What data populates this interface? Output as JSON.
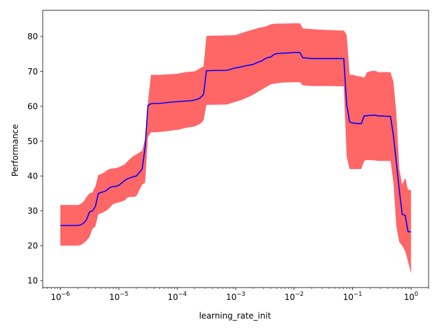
{
  "chart_data": {
    "type": "line",
    "title": "",
    "xlabel": "learning_rate_init",
    "ylabel": "Performance",
    "xscale": "log",
    "xlim": [
      5e-07,
      2
    ],
    "ylim": [
      8,
      87.5
    ],
    "grid": false,
    "x_ticks": [
      {
        "base": "10",
        "exp": "−6",
        "value": 1e-06
      },
      {
        "base": "10",
        "exp": "−5",
        "value": 1e-05
      },
      {
        "base": "10",
        "exp": "−4",
        "value": 0.0001
      },
      {
        "base": "10",
        "exp": "−3",
        "value": 0.001
      },
      {
        "base": "10",
        "exp": "−2",
        "value": 0.01
      },
      {
        "base": "10",
        "exp": "−1",
        "value": 0.1
      },
      {
        "base": "10",
        "exp": "0",
        "value": 1
      }
    ],
    "y_ticks": [
      {
        "label": "10",
        "value": 10
      },
      {
        "label": "20",
        "value": 20
      },
      {
        "label": "30",
        "value": 30
      },
      {
        "label": "40",
        "value": 40
      },
      {
        "label": "50",
        "value": 50
      },
      {
        "label": "60",
        "value": 60
      },
      {
        "label": "70",
        "value": 70
      },
      {
        "label": "80",
        "value": 80
      }
    ],
    "colors": {
      "mean_line": "#0000ff",
      "band": "#ff6666",
      "axes": "#000000"
    },
    "series": [
      {
        "role": "mean",
        "x": [
          1e-06,
          1.58e-06,
          2e-06,
          2.24e-06,
          2.51e-06,
          2.82e-06,
          3.16e-06,
          3.55e-06,
          3.98e-06,
          4.47e-06,
          5.01e-06,
          5.62e-06,
          6.31e-06,
          7.08e-06,
          7.94e-06,
          8.91e-06,
          1e-05,
          1.26e-05,
          1.41e-05,
          1.58e-05,
          1.78e-05,
          2e-05,
          2.51e-05,
          2.82e-05,
          3.16e-05,
          3.55e-05,
          3.98e-05,
          4.47e-05,
          5.01e-05,
          7.94e-05,
          0.0001,
          0.000141,
          0.000178,
          0.000224,
          0.000251,
          0.000282,
          0.000316,
          0.000708,
          0.001,
          0.00126,
          0.00158,
          0.002,
          0.00224,
          0.00251,
          0.00282,
          0.00316,
          0.00355,
          0.00398,
          0.00447,
          0.00501,
          0.00631,
          0.01,
          0.0126,
          0.0141,
          0.02,
          0.0316,
          0.0447,
          0.0631,
          0.0708,
          0.0794,
          0.0891,
          0.1,
          0.126,
          0.141,
          0.158,
          0.178,
          0.2,
          0.251,
          0.282,
          0.316,
          0.398,
          0.447,
          0.501,
          0.562,
          0.631,
          0.708,
          0.794,
          0.891,
          1.0
        ],
        "y": [
          25.8,
          25.8,
          25.8,
          26.0,
          26.5,
          27.5,
          29.7,
          30.0,
          31.2,
          35.0,
          35.3,
          35.5,
          36.0,
          36.7,
          37.0,
          37.0,
          37.3,
          38.7,
          39.2,
          39.5,
          39.8,
          40.0,
          42.0,
          48.0,
          60.2,
          60.7,
          60.8,
          60.8,
          60.8,
          61.2,
          61.3,
          61.5,
          61.6,
          62.0,
          62.5,
          63.4,
          70.2,
          70.3,
          71.0,
          71.3,
          71.7,
          72.0,
          72.4,
          72.7,
          73.0,
          73.6,
          74.0,
          74.1,
          74.8,
          75.1,
          75.2,
          75.4,
          75.4,
          73.9,
          73.7,
          73.7,
          73.7,
          73.7,
          73.7,
          60.5,
          55.5,
          55.2,
          55.0,
          55.0,
          57.2,
          57.3,
          57.4,
          57.4,
          57.2,
          57.2,
          57.1,
          57.1,
          51.4,
          44.0,
          35.9,
          29.0,
          28.7,
          24.0,
          24.0
        ]
      },
      {
        "role": "band-upper",
        "x": [
          1e-06,
          1.58e-06,
          2e-06,
          2.24e-06,
          2.51e-06,
          2.82e-06,
          3.16e-06,
          3.55e-06,
          3.98e-06,
          4.47e-06,
          5.01e-06,
          5.62e-06,
          6.31e-06,
          7.08e-06,
          7.94e-06,
          8.91e-06,
          1e-05,
          1.26e-05,
          1.41e-05,
          1.58e-05,
          1.78e-05,
          2e-05,
          2.51e-05,
          2.82e-05,
          3.16e-05,
          3.55e-05,
          5.01e-05,
          0.0001,
          0.000141,
          0.0002,
          0.000251,
          0.000282,
          0.000316,
          0.000708,
          0.001,
          0.00126,
          0.00158,
          0.002,
          0.00251,
          0.00316,
          0.00398,
          0.00501,
          0.00631,
          0.01,
          0.0126,
          0.0141,
          0.02,
          0.0316,
          0.0447,
          0.0631,
          0.0708,
          0.0794,
          0.0891,
          0.1,
          0.126,
          0.141,
          0.158,
          0.178,
          0.224,
          0.251,
          0.282,
          0.316,
          0.398,
          0.447,
          0.501,
          0.562,
          0.631,
          0.708,
          0.794,
          0.891,
          1.0
        ],
        "y": [
          31.7,
          31.7,
          31.7,
          32.0,
          32.7,
          34.0,
          35.0,
          35.3,
          37.0,
          40.3,
          40.6,
          41.0,
          41.7,
          42.0,
          42.2,
          42.3,
          42.5,
          43.3,
          44.2,
          45.0,
          45.7,
          46.2,
          47.2,
          50.5,
          61.0,
          69.0,
          69.0,
          69.3,
          69.8,
          70.0,
          71.0,
          71.4,
          80.2,
          80.3,
          80.4,
          81.0,
          81.5,
          82.0,
          82.5,
          82.8,
          83.5,
          83.7,
          83.7,
          83.8,
          83.8,
          82.3,
          82.1,
          81.9,
          81.8,
          81.7,
          81.7,
          80.5,
          69.1,
          69.0,
          68.6,
          68.5,
          68.2,
          69.8,
          70.2,
          70.1,
          69.7,
          69.8,
          69.8,
          69.7,
          67.0,
          58.0,
          42.0,
          37.5,
          39.5,
          36.0,
          36.0
        ]
      },
      {
        "role": "band-lower",
        "x": [
          1e-06,
          1.58e-06,
          2e-06,
          2.24e-06,
          2.51e-06,
          2.82e-06,
          3.16e-06,
          3.55e-06,
          3.98e-06,
          4.47e-06,
          5.01e-06,
          5.62e-06,
          6.31e-06,
          7.08e-06,
          7.94e-06,
          8.91e-06,
          1e-05,
          1.26e-05,
          1.41e-05,
          1.58e-05,
          1.78e-05,
          2e-05,
          2.51e-05,
          2.82e-05,
          3.16e-05,
          3.55e-05,
          5.01e-05,
          0.0001,
          0.000141,
          0.0002,
          0.000251,
          0.000282,
          0.000316,
          0.000708,
          0.001,
          0.00126,
          0.00158,
          0.002,
          0.00251,
          0.00316,
          0.00398,
          0.00501,
          0.00631,
          0.01,
          0.0126,
          0.0141,
          0.02,
          0.0316,
          0.0447,
          0.0631,
          0.0708,
          0.0794,
          0.0891,
          0.1,
          0.126,
          0.141,
          0.158,
          0.178,
          0.224,
          0.251,
          0.282,
          0.316,
          0.398,
          0.447,
          0.501,
          0.562,
          0.631,
          0.708,
          0.794,
          0.891,
          1.0
        ],
        "y": [
          20.0,
          20.0,
          20.0,
          20.2,
          20.7,
          21.5,
          22.5,
          24.8,
          25.5,
          29.0,
          29.3,
          29.7,
          30.2,
          31.0,
          31.9,
          32.2,
          32.4,
          33.0,
          33.8,
          34.0,
          34.0,
          34.2,
          37.5,
          38.0,
          51.2,
          52.5,
          52.6,
          53.2,
          53.8,
          54.2,
          55.0,
          56.0,
          60.4,
          60.5,
          61.3,
          61.8,
          62.5,
          63.3,
          64.3,
          65.3,
          66.3,
          66.6,
          66.8,
          66.9,
          66.9,
          66.0,
          65.8,
          65.8,
          65.8,
          65.7,
          65.7,
          45.5,
          42.0,
          42.0,
          42.0,
          42.0,
          44.3,
          44.6,
          44.5,
          44.4,
          44.3,
          44.3,
          44.3,
          44.3,
          38.0,
          25.5,
          21.0,
          20.0,
          18.5,
          15.5,
          12.0
        ]
      }
    ]
  }
}
